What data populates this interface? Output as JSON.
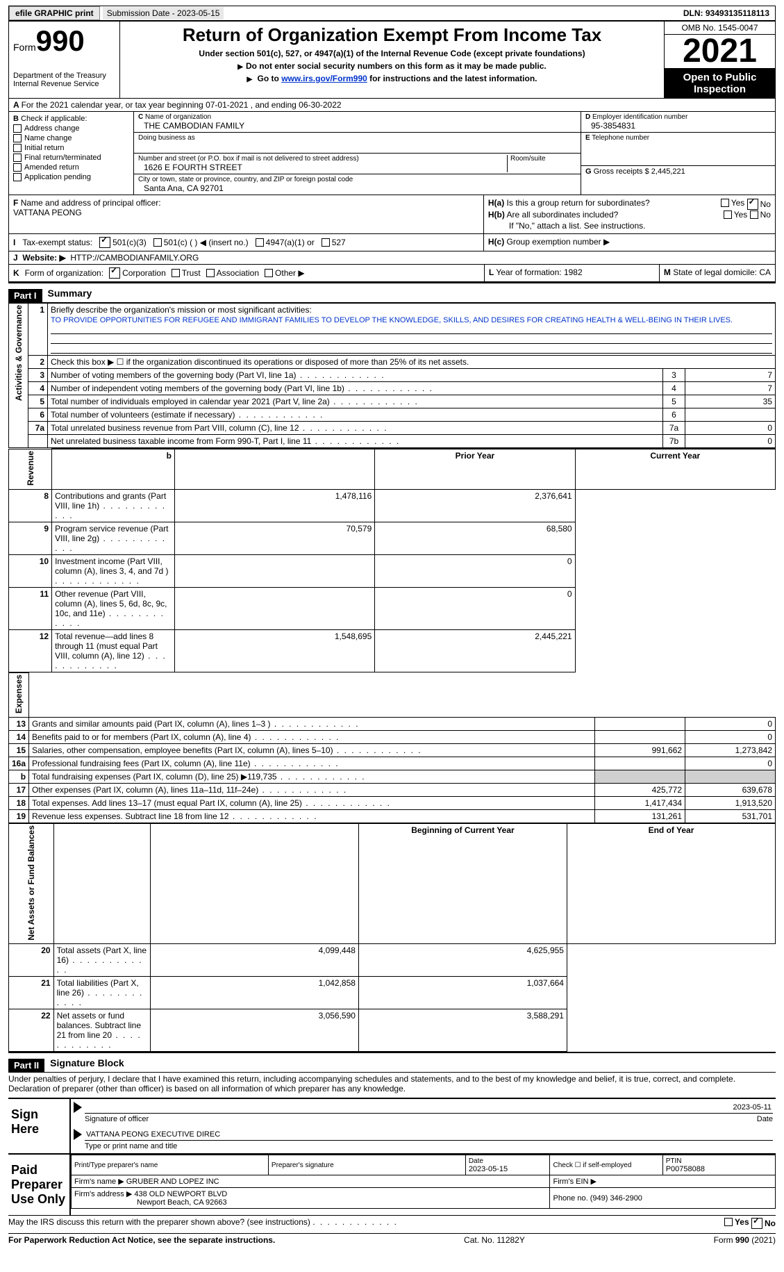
{
  "top": {
    "efile": "efile GRAPHIC print",
    "submission": "Submission Date - 2023-05-15",
    "dln": "DLN: 93493135118113"
  },
  "header": {
    "form_label": "Form",
    "form_num": "990",
    "dept": "Department of the Treasury",
    "irs": "Internal Revenue Service",
    "title": "Return of Organization Exempt From Income Tax",
    "subtitle": "Under section 501(c), 527, or 4947(a)(1) of the Internal Revenue Code (except private foundations)",
    "note1": "Do not enter social security numbers on this form as it may be made public.",
    "note2_pre": "Go to ",
    "note2_link": "www.irs.gov/Form990",
    "note2_post": " for instructions and the latest information.",
    "omb": "OMB No. 1545-0047",
    "year": "2021",
    "otp": "Open to Public Inspection"
  },
  "line_a": "For the 2021 calendar year, or tax year beginning 07-01-2021   , and ending 06-30-2022",
  "section_b": {
    "label": "Check if applicable:",
    "items": [
      "Address change",
      "Name change",
      "Initial return",
      "Final return/terminated",
      "Amended return",
      "Application pending"
    ]
  },
  "section_c": {
    "name_label": "Name of organization",
    "name": "THE CAMBODIAN FAMILY",
    "dba_label": "Doing business as",
    "addr_label": "Number and street (or P.O. box if mail is not delivered to street address)",
    "room_label": "Room/suite",
    "addr": "1626 E FOURTH STREET",
    "city_label": "City or town, state or province, country, and ZIP or foreign postal code",
    "city": "Santa Ana, CA  92701"
  },
  "section_d": {
    "ein_label": "Employer identification number",
    "ein": "95-3854831",
    "tel_label": "Telephone number",
    "gross_label": "Gross receipts $",
    "gross": "2,445,221"
  },
  "section_f": {
    "label": "Name and address of principal officer:",
    "name": "VATTANA PEONG"
  },
  "section_h": {
    "ha": "Is this a group return for subordinates?",
    "hb": "Are all subordinates included?",
    "hb_note": "If \"No,\" attach a list. See instructions.",
    "hc": "Group exemption number ▶",
    "yes": "Yes",
    "no": "No"
  },
  "section_i": {
    "label": "Tax-exempt status:",
    "opt1": "501(c)(3)",
    "opt2": "501(c) (  ) ◀ (insert no.)",
    "opt3": "4947(a)(1) or",
    "opt4": "527"
  },
  "section_j": {
    "label": "Website: ▶",
    "value": "HTTP://CAMBODIANFAMILY.ORG"
  },
  "section_k": {
    "label": "Form of organization:",
    "corp": "Corporation",
    "trust": "Trust",
    "assoc": "Association",
    "other": "Other ▶",
    "l_label": "Year of formation:",
    "l_val": "1982",
    "m_label": "State of legal domicile:",
    "m_val": "CA"
  },
  "part1": {
    "header": "Part I",
    "title": "Summary",
    "q1": "Briefly describe the organization's mission or most significant activities:",
    "mission": "TO PROVIDE OPPORTUNITIES FOR REFUGEE AND IMMIGRANT FAMILIES TO DEVELOP THE KNOWLEDGE, SKILLS, AND DESIRES FOR CREATING HEALTH & WELL-BEING IN THEIR LIVES.",
    "q2": "Check this box ▶ ☐ if the organization discontinued its operations or disposed of more than 25% of its net assets.",
    "vert_ag": "Activities & Governance",
    "vert_rev": "Revenue",
    "vert_exp": "Expenses",
    "vert_na": "Net Assets or Fund Balances",
    "prior": "Prior Year",
    "current": "Current Year",
    "begin": "Beginning of Current Year",
    "end": "End of Year",
    "rows_gov": [
      {
        "n": "3",
        "t": "Number of voting members of the governing body (Part VI, line 1a)",
        "box": "3",
        "v": "7"
      },
      {
        "n": "4",
        "t": "Number of independent voting members of the governing body (Part VI, line 1b)",
        "box": "4",
        "v": "7"
      },
      {
        "n": "5",
        "t": "Total number of individuals employed in calendar year 2021 (Part V, line 2a)",
        "box": "5",
        "v": "35"
      },
      {
        "n": "6",
        "t": "Total number of volunteers (estimate if necessary)",
        "box": "6",
        "v": ""
      },
      {
        "n": "7a",
        "t": "Total unrelated business revenue from Part VIII, column (C), line 12",
        "box": "7a",
        "v": "0"
      },
      {
        "n": "",
        "t": "Net unrelated business taxable income from Form 990-T, Part I, line 11",
        "box": "7b",
        "v": "0"
      }
    ],
    "rows_rev": [
      {
        "n": "8",
        "t": "Contributions and grants (Part VIII, line 1h)",
        "p": "1,478,116",
        "c": "2,376,641"
      },
      {
        "n": "9",
        "t": "Program service revenue (Part VIII, line 2g)",
        "p": "70,579",
        "c": "68,580"
      },
      {
        "n": "10",
        "t": "Investment income (Part VIII, column (A), lines 3, 4, and 7d )",
        "p": "",
        "c": "0"
      },
      {
        "n": "11",
        "t": "Other revenue (Part VIII, column (A), lines 5, 6d, 8c, 9c, 10c, and 11e)",
        "p": "",
        "c": "0"
      },
      {
        "n": "12",
        "t": "Total revenue—add lines 8 through 11 (must equal Part VIII, column (A), line 12)",
        "p": "1,548,695",
        "c": "2,445,221"
      }
    ],
    "rows_exp": [
      {
        "n": "13",
        "t": "Grants and similar amounts paid (Part IX, column (A), lines 1–3 )",
        "p": "",
        "c": "0"
      },
      {
        "n": "14",
        "t": "Benefits paid to or for members (Part IX, column (A), line 4)",
        "p": "",
        "c": "0"
      },
      {
        "n": "15",
        "t": "Salaries, other compensation, employee benefits (Part IX, column (A), lines 5–10)",
        "p": "991,662",
        "c": "1,273,842"
      },
      {
        "n": "16a",
        "t": "Professional fundraising fees (Part IX, column (A), line 11e)",
        "p": "",
        "c": "0"
      },
      {
        "n": "b",
        "t": "Total fundraising expenses (Part IX, column (D), line 25) ▶119,735",
        "p": "shaded",
        "c": "shaded"
      },
      {
        "n": "17",
        "t": "Other expenses (Part IX, column (A), lines 11a–11d, 11f–24e)",
        "p": "425,772",
        "c": "639,678"
      },
      {
        "n": "18",
        "t": "Total expenses. Add lines 13–17 (must equal Part IX, column (A), line 25)",
        "p": "1,417,434",
        "c": "1,913,520"
      },
      {
        "n": "19",
        "t": "Revenue less expenses. Subtract line 18 from line 12",
        "p": "131,261",
        "c": "531,701"
      }
    ],
    "rows_na": [
      {
        "n": "20",
        "t": "Total assets (Part X, line 16)",
        "p": "4,099,448",
        "c": "4,625,955"
      },
      {
        "n": "21",
        "t": "Total liabilities (Part X, line 26)",
        "p": "1,042,858",
        "c": "1,037,664"
      },
      {
        "n": "22",
        "t": "Net assets or fund balances. Subtract line 21 from line 20",
        "p": "3,056,590",
        "c": "3,588,291"
      }
    ]
  },
  "part2": {
    "header": "Part II",
    "title": "Signature Block",
    "decl": "Under penalties of perjury, I declare that I have examined this return, including accompanying schedules and statements, and to the best of my knowledge and belief, it is true, correct, and complete. Declaration of preparer (other than officer) is based on all information of which preparer has any knowledge.",
    "sign_here": "Sign Here",
    "sig_officer": "Signature of officer",
    "sig_date": "2023-05-11",
    "date_label": "Date",
    "officer_name": "VATTANA PEONG EXECUTIVE DIREC",
    "type_name": "Type or print name and title",
    "paid": "Paid Preparer Use Only",
    "prep_name_label": "Print/Type preparer's name",
    "prep_sig_label": "Preparer's signature",
    "prep_date_label": "Date",
    "prep_date": "2023-05-15",
    "check_self": "Check ☐ if self-employed",
    "ptin_label": "PTIN",
    "ptin": "P00758088",
    "firm_name_label": "Firm's name   ▶",
    "firm_name": "GRUBER AND LOPEZ INC",
    "firm_ein_label": "Firm's EIN ▶",
    "firm_addr_label": "Firm's address ▶",
    "firm_addr1": "438 OLD NEWPORT BLVD",
    "firm_addr2": "Newport Beach, CA  92663",
    "phone_label": "Phone no.",
    "phone": "(949) 346-2900",
    "may_irs": "May the IRS discuss this return with the preparer shown above? (see instructions)"
  },
  "footer": {
    "left": "For Paperwork Reduction Act Notice, see the separate instructions.",
    "mid": "Cat. No. 11282Y",
    "right": "Form 990 (2021)"
  }
}
